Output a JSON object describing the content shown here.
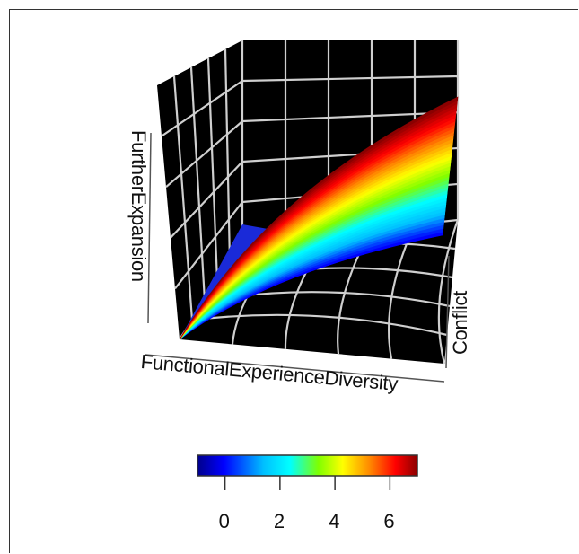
{
  "chart_data": {
    "type": "surface3d",
    "axes": {
      "x": "FunctionalExperienceDiversity",
      "y": "Conflict",
      "z": "FurtherExpansion"
    },
    "grid": true,
    "background": "#000000",
    "colorbar": {
      "ticks": [
        "0",
        "2",
        "4",
        "6"
      ],
      "range": [
        -1,
        7
      ],
      "colors": [
        "#00008b",
        "#0000ff",
        "#00bfff",
        "#00ffff",
        "#7fff00",
        "#ffff00",
        "#ff8c00",
        "#ff0000",
        "#8b0000"
      ]
    }
  }
}
